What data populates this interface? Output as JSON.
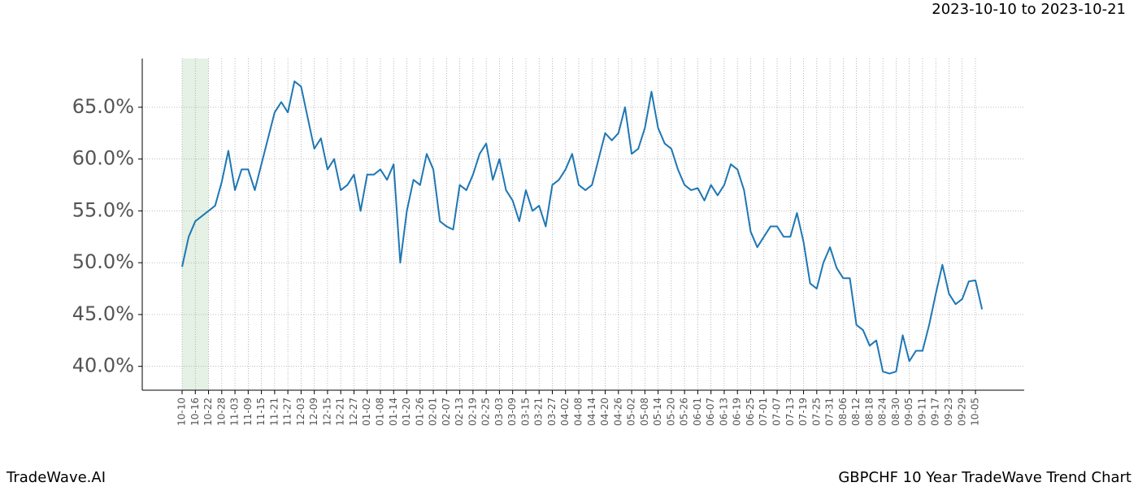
{
  "header": {
    "date_range": "2023-10-10 to 2023-10-21"
  },
  "footer": {
    "brand": "TradeWave.AI",
    "chart_name": "GBPCHF 10 Year TradeWave Trend Chart"
  },
  "chart_data": {
    "type": "line",
    "color": "#1f77b4",
    "grid": true,
    "categories": [
      "10-10",
      null,
      "10-16",
      null,
      "10-22",
      null,
      "10-28",
      null,
      "11-03",
      null,
      "11-09",
      null,
      "11-15",
      null,
      "11-21",
      null,
      "11-27",
      null,
      "12-03",
      null,
      "12-09",
      null,
      "12-15",
      null,
      "12-21",
      null,
      "12-27",
      null,
      "01-02",
      null,
      "01-08",
      null,
      "01-14",
      null,
      "01-20",
      null,
      "01-26",
      null,
      "02-01",
      null,
      "02-07",
      null,
      "02-13",
      null,
      "02-19",
      null,
      "02-25",
      null,
      "03-03",
      null,
      "03-09",
      null,
      "03-15",
      null,
      "03-21",
      null,
      "03-27",
      null,
      "04-02",
      null,
      "04-08",
      null,
      "04-14",
      null,
      "04-20",
      null,
      "04-26",
      null,
      "05-02",
      null,
      "05-08",
      null,
      "05-14",
      null,
      "05-20",
      null,
      "05-26",
      null,
      "06-01",
      null,
      "06-07",
      null,
      "06-13",
      null,
      "06-19",
      null,
      "06-25",
      null,
      "07-01",
      null,
      "07-07",
      null,
      "07-13",
      null,
      "07-19",
      null,
      "07-25",
      null,
      "07-31",
      null,
      "08-06",
      null,
      "08-12",
      null,
      "08-18",
      null,
      "08-24",
      null,
      "08-30",
      null,
      "09-05",
      null,
      "09-11",
      null,
      "09-17",
      null,
      "09-23",
      null,
      "09-29",
      null,
      "10-05",
      null
    ],
    "values": [
      49.6,
      52.5,
      54.0,
      54.5,
      55.0,
      55.5,
      57.8,
      60.8,
      57.0,
      59.0,
      59.0,
      57.0,
      59.5,
      62.0,
      64.5,
      65.5,
      64.5,
      67.5,
      67.0,
      64.0,
      61.0,
      62.0,
      59.0,
      60.0,
      57.0,
      57.5,
      58.5,
      55.0,
      58.5,
      58.5,
      59.0,
      58.0,
      59.5,
      50.0,
      55.0,
      58.0,
      57.5,
      60.5,
      59.0,
      54.0,
      53.5,
      53.2,
      57.5,
      57.0,
      58.5,
      60.5,
      61.5,
      58.0,
      60.0,
      57.0,
      56.0,
      54.0,
      57.0,
      55.0,
      55.5,
      53.5,
      57.5,
      58.0,
      59.0,
      60.5,
      57.5,
      57.0,
      57.5,
      60.0,
      62.5,
      61.8,
      62.5,
      65.0,
      60.5,
      61.0,
      63.0,
      66.5,
      63.0,
      61.5,
      61.0,
      59.0,
      57.5,
      57.0,
      57.2,
      56.0,
      57.5,
      56.5,
      57.5,
      59.5,
      59.0,
      57.0,
      53.0,
      51.5,
      52.5,
      53.5,
      53.5,
      52.5,
      52.5,
      54.8,
      52.0,
      48.0,
      47.5,
      50.0,
      51.5,
      49.5,
      48.5,
      48.5,
      44.0,
      43.5,
      42.0,
      42.5,
      39.5,
      39.3,
      39.5,
      43.0,
      40.5,
      41.5,
      41.5,
      44.0,
      47.0,
      49.8,
      47.0,
      46.0,
      46.5,
      48.2,
      48.3,
      45.5
    ],
    "ylim": [
      37.7,
      69.7
    ],
    "yticks": [
      {
        "value": 40,
        "label": "40.0%"
      },
      {
        "value": 45,
        "label": "45.0%"
      },
      {
        "value": 50,
        "label": "50.0%"
      },
      {
        "value": 55,
        "label": "55.0%"
      },
      {
        "value": 60,
        "label": "60.0%"
      },
      {
        "value": 65,
        "label": "65.0%"
      }
    ]
  }
}
